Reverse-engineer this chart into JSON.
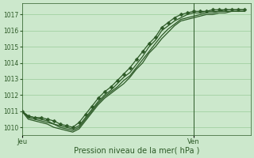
{
  "title": "",
  "xlabel": "Pression niveau de la mer( hPa )",
  "bg_color": "#cce8cc",
  "plot_bg_color": "#cce8cc",
  "grid_color": "#99cc99",
  "line_color": "#2d5a27",
  "ylim": [
    1009.5,
    1017.7
  ],
  "xlim": [
    0,
    36
  ],
  "yticks": [
    1010,
    1011,
    1012,
    1013,
    1014,
    1015,
    1016,
    1017
  ],
  "xtick_positions": [
    0,
    27
  ],
  "xtick_labels": [
    "Jeu",
    "Ven"
  ],
  "vline_x": 27,
  "series_with_markers": [
    [
      1011.0,
      1010.7,
      1010.6,
      1010.6,
      1010.5,
      1010.4,
      1010.2,
      1010.1,
      1010.0,
      1010.3,
      1010.8,
      1011.3,
      1011.8,
      1012.2,
      1012.5,
      1012.9,
      1013.3,
      1013.7,
      1014.2,
      1014.7,
      1015.2,
      1015.6,
      1016.2,
      1016.5,
      1016.8,
      1017.0,
      1017.1,
      1017.2,
      1017.2,
      1017.2,
      1017.3,
      1017.3,
      1017.3,
      1017.3,
      1017.3,
      1017.3
    ]
  ],
  "series_without_markers": [
    [
      1011.0,
      1010.6,
      1010.5,
      1010.4,
      1010.3,
      1010.2,
      1010.0,
      1009.9,
      1009.8,
      1010.0,
      1010.5,
      1011.0,
      1011.5,
      1011.9,
      1012.2,
      1012.5,
      1012.9,
      1013.2,
      1013.7,
      1014.2,
      1014.7,
      1015.2,
      1015.7,
      1016.1,
      1016.4,
      1016.7,
      1016.8,
      1016.9,
      1017.0,
      1017.1,
      1017.1,
      1017.2,
      1017.2,
      1017.2,
      1017.2,
      1017.2
    ],
    [
      1011.0,
      1010.5,
      1010.4,
      1010.3,
      1010.2,
      1010.0,
      1009.9,
      1009.8,
      1009.7,
      1009.9,
      1010.4,
      1010.9,
      1011.4,
      1011.8,
      1012.1,
      1012.4,
      1012.7,
      1013.1,
      1013.6,
      1014.0,
      1014.6,
      1015.0,
      1015.5,
      1015.9,
      1016.3,
      1016.6,
      1016.7,
      1016.8,
      1016.9,
      1017.0,
      1017.0,
      1017.1,
      1017.1,
      1017.2,
      1017.2,
      1017.2
    ],
    [
      1011.0,
      1010.7,
      1010.6,
      1010.5,
      1010.4,
      1010.2,
      1010.1,
      1010.0,
      1009.9,
      1010.1,
      1010.6,
      1011.1,
      1011.6,
      1012.0,
      1012.3,
      1012.7,
      1013.1,
      1013.4,
      1013.9,
      1014.4,
      1015.0,
      1015.4,
      1016.0,
      1016.3,
      1016.6,
      1016.8,
      1017.0,
      1017.1,
      1017.1,
      1017.2,
      1017.2,
      1017.2,
      1017.3,
      1017.3,
      1017.3,
      1017.3
    ]
  ],
  "marker": "D",
  "marker_size": 2.5,
  "linewidth": 0.9
}
